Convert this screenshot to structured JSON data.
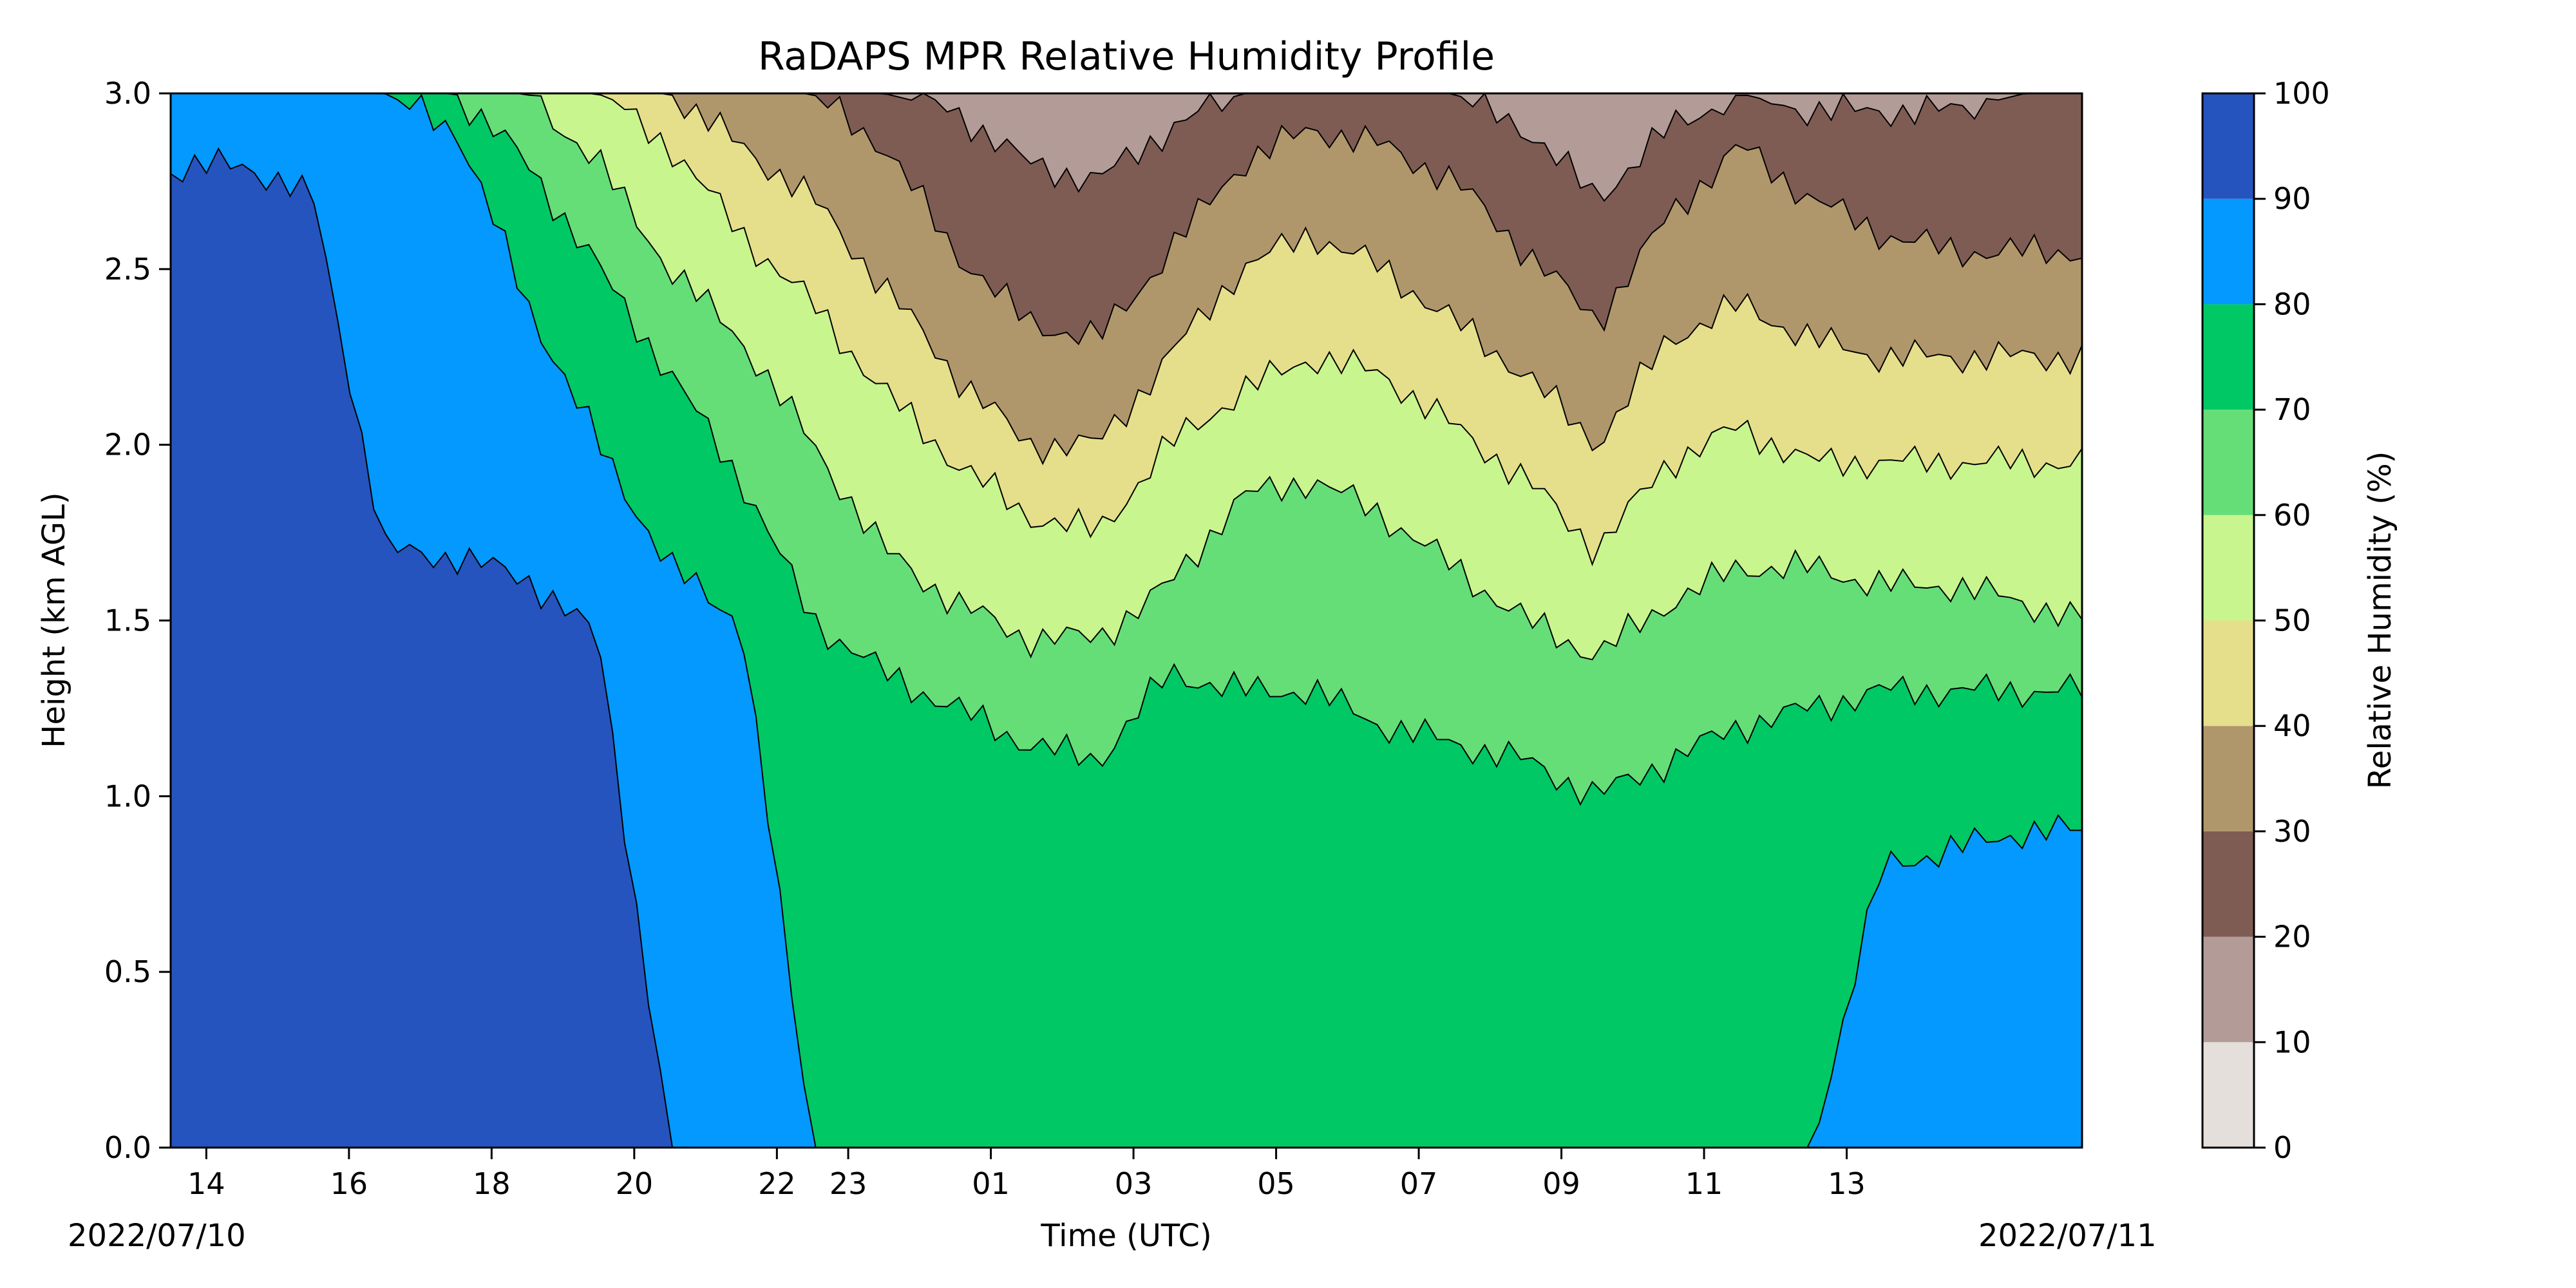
{
  "chart_data": {
    "type": "heatmap",
    "subtype": "filled-contour",
    "title": "RaDAPS MPR Relative Humidity Profile",
    "xlabel": "Time (UTC)",
    "ylabel": "Height (km AGL)",
    "x_tick_labels": [
      "14",
      "16",
      "18",
      "20",
      "22",
      "23",
      "01",
      "03",
      "05",
      "07",
      "09",
      "11",
      "13"
    ],
    "x_tick_positions_hours": [
      0.5,
      2.5,
      4.5,
      6.5,
      8.5,
      9.5,
      11.5,
      13.5,
      15.5,
      17.5,
      19.5,
      21.5,
      23.5
    ],
    "x_range_hours": [
      0,
      26.8
    ],
    "start_date": "2022/07/10",
    "end_date": "2022/07/11",
    "y_ticks": [
      0.0,
      0.5,
      1.0,
      1.5,
      2.0,
      2.5,
      3.0
    ],
    "y_tick_labels": [
      "0.0",
      "0.5",
      "1.0",
      "1.5",
      "2.0",
      "2.5",
      "3.0"
    ],
    "ylim": [
      0.0,
      3.0
    ],
    "colorbar": {
      "label": "Relative Humidity (%)",
      "levels": [
        0,
        10,
        20,
        30,
        40,
        50,
        60,
        70,
        80,
        90,
        100
      ],
      "level_labels": [
        "0",
        "10",
        "20",
        "30",
        "40",
        "50",
        "60",
        "70",
        "80",
        "90",
        "100"
      ],
      "colors": [
        "#e5dfdc",
        "#b39c97",
        "#7e5c54",
        "#b0976b",
        "#e5df8c",
        "#c9f58e",
        "#66de78",
        "#00c864",
        "#0399ff",
        "#2654be"
      ]
    },
    "contour_boundaries_km": {
      "note": "Approximate height (km AGL) of each RH contour level across time (hours from plot start)",
      "x_hours": [
        0,
        1,
        2,
        3,
        4,
        5,
        6,
        7,
        8,
        9,
        10,
        11,
        12,
        13,
        14,
        15,
        16,
        17,
        18,
        19,
        20,
        21,
        22,
        23,
        24,
        25,
        26,
        26.8
      ],
      "rh90_top": [
        2.78,
        2.8,
        2.7,
        1.7,
        1.68,
        1.62,
        1.45,
        0.0,
        0.0,
        0.0,
        0.0,
        0.0,
        0.0,
        0.0,
        0.0,
        0.0,
        0.0,
        0.0,
        0.0,
        0.0,
        0.0,
        0.0,
        0.0,
        0.0,
        0.0,
        0.0,
        0.0,
        0.0
      ],
      "rh80_top": [
        3.0,
        3.0,
        3.0,
        3.0,
        2.9,
        2.4,
        2.0,
        1.65,
        1.5,
        0.0,
        0.0,
        0.0,
        0.0,
        0.0,
        0.0,
        0.0,
        0.0,
        0.0,
        0.0,
        0.0,
        0.0,
        0.0,
        0.0,
        0.0,
        0.8,
        0.85,
        0.9,
        0.9
      ],
      "rh70_top": [
        3.0,
        3.0,
        3.0,
        3.0,
        3.0,
        2.8,
        2.5,
        2.2,
        1.9,
        1.5,
        1.35,
        1.25,
        1.15,
        1.1,
        1.35,
        1.3,
        1.3,
        1.2,
        1.15,
        1.1,
        1.0,
        1.1,
        1.2,
        1.25,
        1.3,
        1.3,
        1.3,
        1.3
      ],
      "rh60_top": [
        3.0,
        3.0,
        3.0,
        3.0,
        3.0,
        3.0,
        2.8,
        2.5,
        2.3,
        2.0,
        1.7,
        1.55,
        1.45,
        1.45,
        1.6,
        1.85,
        1.9,
        1.8,
        1.65,
        1.5,
        1.4,
        1.55,
        1.65,
        1.65,
        1.6,
        1.6,
        1.55,
        1.5
      ],
      "rh50_top": [
        3.0,
        3.0,
        3.0,
        3.0,
        3.0,
        3.0,
        3.0,
        2.85,
        2.6,
        2.4,
        2.15,
        1.95,
        1.8,
        1.75,
        2.0,
        2.15,
        2.25,
        2.2,
        2.05,
        1.9,
        1.7,
        1.95,
        2.05,
        1.95,
        1.95,
        1.95,
        1.95,
        1.95
      ],
      "rh40_top": [
        3.0,
        3.0,
        3.0,
        3.0,
        3.0,
        3.0,
        3.0,
        3.0,
        2.85,
        2.7,
        2.45,
        2.2,
        2.0,
        2.0,
        2.25,
        2.5,
        2.6,
        2.5,
        2.35,
        2.2,
        2.0,
        2.3,
        2.4,
        2.3,
        2.25,
        2.25,
        2.25,
        2.25
      ],
      "rh30_top": [
        3.0,
        3.0,
        3.0,
        3.0,
        3.0,
        3.0,
        3.0,
        3.0,
        3.0,
        3.0,
        2.85,
        2.55,
        2.35,
        2.3,
        2.55,
        2.8,
        2.9,
        2.85,
        2.75,
        2.55,
        2.35,
        2.65,
        2.85,
        2.7,
        2.6,
        2.55,
        2.55,
        2.55
      ],
      "rh20_top": [
        3.0,
        3.0,
        3.0,
        3.0,
        3.0,
        3.0,
        3.0,
        3.0,
        3.0,
        3.0,
        3.0,
        2.95,
        2.8,
        2.75,
        2.9,
        3.0,
        3.0,
        3.0,
        3.0,
        2.9,
        2.7,
        2.9,
        3.0,
        2.95,
        2.95,
        2.95,
        3.0,
        3.0
      ]
    }
  }
}
